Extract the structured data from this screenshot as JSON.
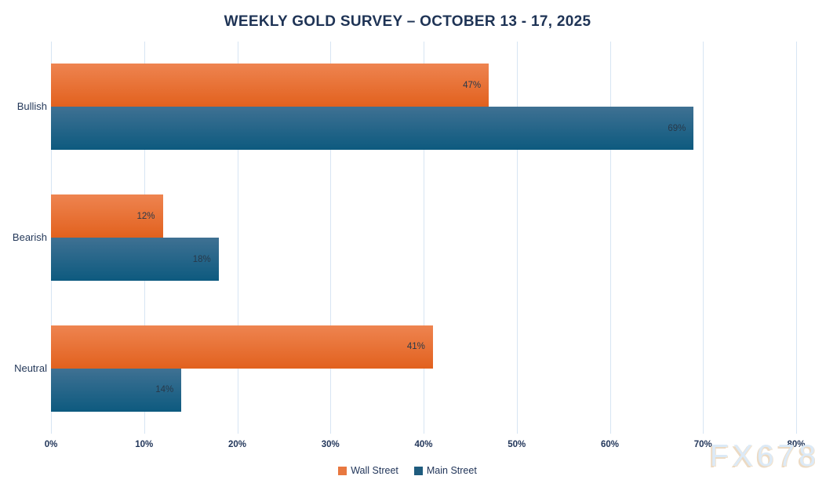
{
  "title": "WEEKLY GOLD SURVEY – OCTOBER 13 - 17, 2025",
  "watermark": "FX678",
  "colors": {
    "title_text": "#1e3355",
    "axis_text": "#22365a",
    "bar_label_text": "#28394a",
    "gridline": "#d7e5f3",
    "wall_street_gradient_top": "#ee8450",
    "wall_street_gradient_bottom": "#e2611e",
    "main_street_gradient_top": "#3f7193",
    "main_street_gradient_bottom": "#0d5a7f",
    "legend_wall_street_swatch": "#e87840",
    "legend_main_street_swatch": "#1f5c7e",
    "watermark_fill": "#dceaf7",
    "watermark_outline": "#ecdac3"
  },
  "chart_data": {
    "type": "bar",
    "orientation": "horizontal",
    "title": "WEEKLY GOLD SURVEY – OCTOBER 13 - 17, 2025",
    "categories": [
      "Bullish",
      "Bearish",
      "Neutral"
    ],
    "series": [
      {
        "name": "Wall Street",
        "values": [
          47,
          12,
          41
        ],
        "color": "#e87840"
      },
      {
        "name": "Main Street",
        "values": [
          69,
          18,
          14
        ],
        "color": "#1f5c7e"
      }
    ],
    "value_labels": [
      [
        "47%",
        "12%",
        "41%"
      ],
      [
        "69%",
        "18%",
        "14%"
      ]
    ],
    "xlabel": "",
    "ylabel": "",
    "xlim": [
      0,
      80
    ],
    "x_ticks": [
      "0%",
      "10%",
      "20%",
      "30%",
      "40%",
      "50%",
      "60%",
      "70%",
      "80%"
    ],
    "grid": "vertical-only",
    "legend_position": "bottom-center"
  }
}
